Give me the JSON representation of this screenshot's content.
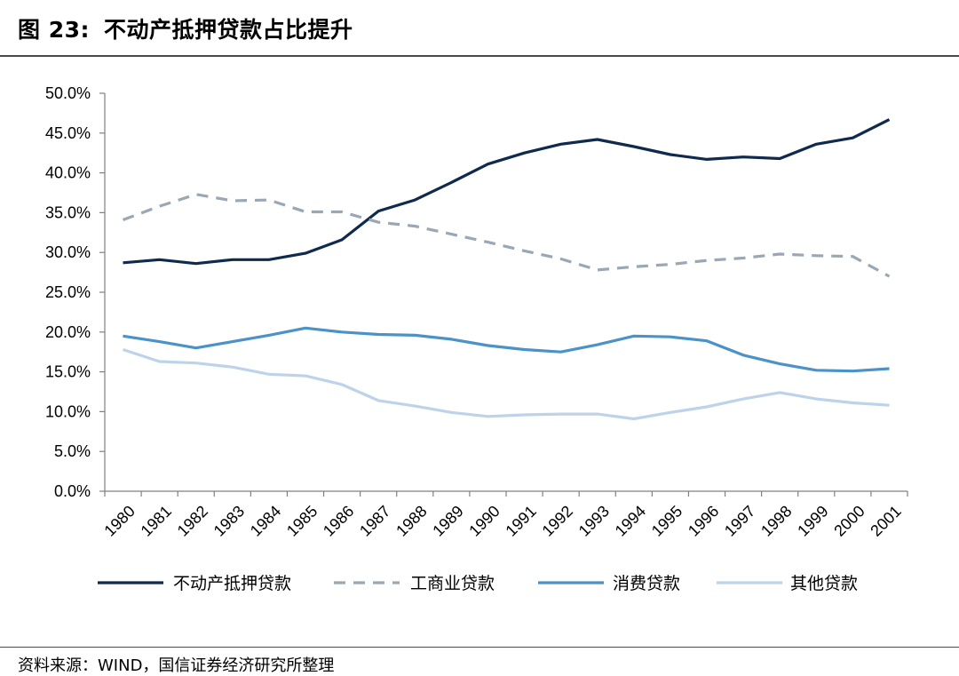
{
  "header": {
    "figure_num": "图 23:",
    "title": "不动产抵押贷款占比提升"
  },
  "source": "资料来源：WIND，国信证券经济研究所整理",
  "chart_data": {
    "type": "line",
    "x": [
      "1980",
      "1981",
      "1982",
      "1983",
      "1984",
      "1985",
      "1986",
      "1987",
      "1988",
      "1989",
      "1990",
      "1991",
      "1992",
      "1993",
      "1994",
      "1995",
      "1996",
      "1997",
      "1998",
      "1999",
      "2000",
      "2001"
    ],
    "ylim": [
      0,
      0.5
    ],
    "y_ticks": [
      "0.0%",
      "5.0%",
      "10.0%",
      "15.0%",
      "20.0%",
      "25.0%",
      "30.0%",
      "35.0%",
      "40.0%",
      "45.0%",
      "50.0%"
    ],
    "grid": false,
    "legend_position": "bottom",
    "series": [
      {
        "name": "不动产抵押贷款",
        "color": "#0f2a4d",
        "dash": "solid",
        "values": [
          0.287,
          0.291,
          0.286,
          0.291,
          0.291,
          0.299,
          0.316,
          0.352,
          0.366,
          0.388,
          0.411,
          0.425,
          0.436,
          0.442,
          0.433,
          0.423,
          0.417,
          0.42,
          0.418,
          0.436,
          0.444,
          0.467
        ]
      },
      {
        "name": "工商业贷款",
        "color": "#9aa7b5",
        "dash": "dashed",
        "values": [
          0.341,
          0.358,
          0.373,
          0.365,
          0.366,
          0.351,
          0.351,
          0.338,
          0.333,
          0.323,
          0.313,
          0.302,
          0.292,
          0.278,
          0.282,
          0.285,
          0.29,
          0.293,
          0.298,
          0.296,
          0.295,
          0.27
        ]
      },
      {
        "name": "消费贷款",
        "color": "#4a92c8",
        "dash": "solid",
        "values": [
          0.195,
          0.188,
          0.18,
          0.188,
          0.196,
          0.205,
          0.2,
          0.197,
          0.196,
          0.191,
          0.183,
          0.178,
          0.175,
          0.184,
          0.195,
          0.194,
          0.189,
          0.171,
          0.16,
          0.152,
          0.151,
          0.154
        ]
      },
      {
        "name": "其他贷款",
        "color": "#bdd3ea",
        "dash": "solid",
        "values": [
          0.178,
          0.163,
          0.161,
          0.156,
          0.147,
          0.145,
          0.134,
          0.114,
          0.107,
          0.099,
          0.094,
          0.096,
          0.097,
          0.097,
          0.091,
          0.099,
          0.106,
          0.116,
          0.124,
          0.116,
          0.111,
          0.108
        ]
      }
    ]
  }
}
